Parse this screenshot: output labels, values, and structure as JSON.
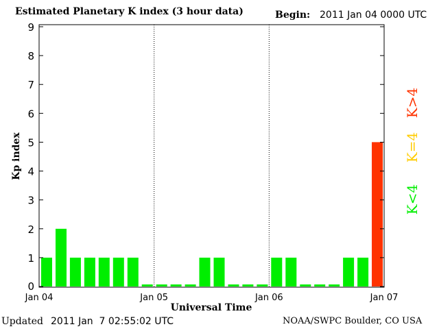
{
  "header": {
    "title": "Estimated Planetary K index (3 hour data)",
    "begin_label": "Begin:",
    "begin_value": "2011 Jan 04 0000 UTC"
  },
  "footer": {
    "updated_label": "Updated",
    "updated_value": "2011 Jan  7 02:55:02 UTC",
    "source": "NOAA/SWPC Boulder, CO USA"
  },
  "legend": {
    "high": "K>4",
    "equal": "K=4",
    "low": "K<4",
    "colors": {
      "high": "#ff3300",
      "equal": "#ffcc00",
      "low": "#00ee00"
    }
  },
  "chart_data": {
    "type": "bar",
    "title": "Estimated Planetary K index (3 hour data)",
    "xlabel": "Universal Time",
    "ylabel": "Kp index",
    "ylim": [
      0,
      9
    ],
    "yticks": [
      "0",
      "1",
      "2",
      "3",
      "4",
      "5",
      "6",
      "7",
      "8",
      "9"
    ],
    "xticks": [
      "Jan 04",
      "Jan 05",
      "Jan 06",
      "Jan 07"
    ],
    "bars_per_day": 8,
    "day_separators": "dotted vertical lines",
    "values": [
      1,
      2,
      1,
      1,
      1,
      1,
      1,
      0,
      0,
      0,
      0,
      1,
      1,
      0,
      0,
      0,
      1,
      1,
      0,
      0,
      0,
      1,
      1,
      5
    ],
    "bar_colors": [
      "low",
      "low",
      "low",
      "low",
      "low",
      "low",
      "low",
      "low",
      "low",
      "low",
      "low",
      "low",
      "low",
      "low",
      "low",
      "low",
      "low",
      "low",
      "low",
      "low",
      "low",
      "low",
      "low",
      "high"
    ]
  }
}
